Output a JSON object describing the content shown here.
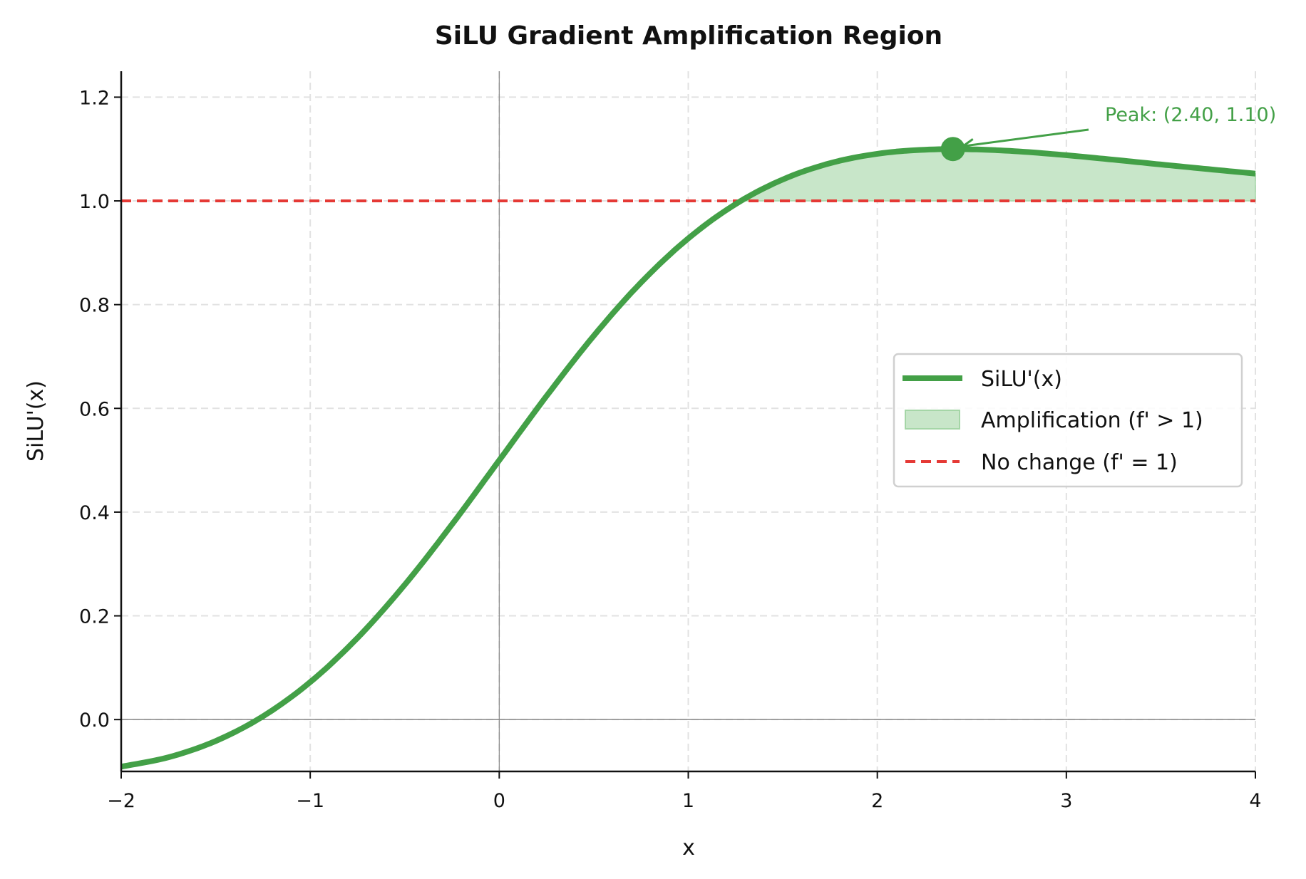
{
  "chart_data": {
    "type": "line",
    "title": "SiLU Gradient Amplification Region",
    "xlabel": "x",
    "ylabel": "SiLU'(x)",
    "xlim": [
      -2,
      4
    ],
    "ylim": [
      -0.1,
      1.25
    ],
    "xticks": [
      -2,
      -1,
      0,
      1,
      2,
      3,
      4
    ],
    "xtick_labels": [
      "−2",
      "−1",
      "0",
      "1",
      "2",
      "3",
      "4"
    ],
    "yticks": [
      0.0,
      0.2,
      0.4,
      0.6,
      0.8,
      1.0,
      1.2
    ],
    "ytick_labels": [
      "0.0",
      "0.2",
      "0.4",
      "0.6",
      "0.8",
      "1.0",
      "1.2"
    ],
    "grid": true,
    "legend_position": "center-right",
    "series": [
      {
        "name": "SiLU'(x)",
        "color": "#43a047",
        "x": [
          -2,
          -1.75,
          -1.5,
          -1.25,
          -1,
          -0.75,
          -0.5,
          -0.25,
          0,
          0.25,
          0.5,
          0.75,
          1,
          1.25,
          1.5,
          1.75,
          2,
          2.25,
          2.5,
          2.75,
          3,
          3.25,
          3.5,
          3.75,
          4
        ],
        "y": [
          -0.0908,
          -0.0727,
          -0.0413,
          0.0063,
          0.0723,
          0.1574,
          0.26,
          0.3763,
          0.5,
          0.6237,
          0.74,
          0.8426,
          0.9277,
          0.9937,
          1.0413,
          1.0727,
          1.0908,
          1.0987,
          1.0994,
          1.0953,
          1.0881,
          1.0794,
          1.0702,
          1.0613,
          1.0526
        ]
      }
    ],
    "fill_region": {
      "name": "Amplification (f' > 1)",
      "color": "#c8e6c9",
      "edge_color": "#a5d6a7",
      "threshold": 1.0
    },
    "reference_line": {
      "name": "No change (f' = 1)",
      "y": 1.0,
      "color": "#e53935",
      "style": "dashed"
    },
    "zero_lines": {
      "x": 0,
      "y": 0,
      "color": "#888888"
    },
    "peak": {
      "x": 2.4,
      "y": 1.1,
      "label": "Peak: (2.40, 1.10)",
      "color": "#43a047"
    }
  }
}
